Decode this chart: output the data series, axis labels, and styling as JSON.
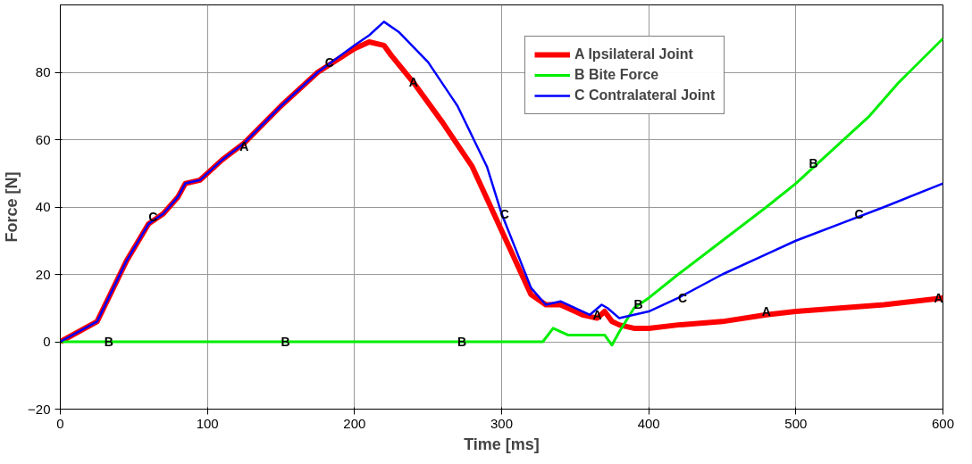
{
  "chart_data": {
    "type": "line",
    "xlabel": "Time [ms]",
    "ylabel": "Force [N]",
    "xlim": [
      0,
      600
    ],
    "ylim": [
      -20,
      100
    ],
    "xticks": [
      0,
      100,
      200,
      300,
      400,
      500,
      600
    ],
    "yticks": [
      -20,
      0,
      20,
      40,
      60,
      80
    ],
    "grid": true,
    "legend": "top right",
    "line_style": "solid",
    "marker": "none",
    "series": [
      {
        "name": "A Ipsilateral Joint",
        "color": "#ff0000",
        "x": [
          0,
          25,
          35,
          45,
          60,
          70,
          80,
          85,
          95,
          110,
          125,
          150,
          175,
          200,
          210,
          220,
          225,
          240,
          260,
          280,
          300,
          320,
          330,
          340,
          355,
          365,
          370,
          375,
          380,
          390,
          400,
          420,
          450,
          480,
          500,
          530,
          560,
          600
        ],
        "values": [
          0,
          6,
          15,
          24,
          35,
          38,
          43,
          47,
          48,
          54,
          59,
          70,
          80,
          87,
          89,
          88,
          85,
          77,
          65,
          52,
          33,
          14,
          11,
          11,
          8,
          7,
          9,
          6,
          5,
          4,
          4,
          5,
          6,
          8,
          9,
          10,
          11,
          13
        ]
      },
      {
        "name": "B Bite Force",
        "color": "#00ee00",
        "x": [
          0,
          328,
          335,
          345,
          360,
          370,
          375,
          380,
          390,
          400,
          420,
          450,
          480,
          500,
          520,
          550,
          570,
          600
        ],
        "values": [
          0,
          0,
          4,
          2,
          2,
          2,
          -1,
          3,
          10,
          13,
          20,
          30,
          40,
          47,
          55,
          67,
          77,
          90
        ]
      },
      {
        "name": "C Contralateral Joint",
        "color": "#0000ff",
        "x": [
          0,
          25,
          35,
          45,
          60,
          70,
          80,
          85,
          95,
          110,
          125,
          150,
          175,
          200,
          210,
          220,
          230,
          250,
          270,
          290,
          300,
          320,
          330,
          340,
          360,
          368,
          372,
          380,
          400,
          420,
          450,
          480,
          500,
          530,
          560,
          600
        ],
        "values": [
          0,
          6,
          15,
          24,
          35,
          38,
          43,
          47,
          48,
          54,
          59,
          70,
          80,
          88,
          91,
          95,
          92,
          83,
          70,
          52,
          38,
          16,
          11,
          12,
          8,
          11,
          10,
          7,
          9,
          13,
          20,
          26,
          30,
          35,
          40,
          47
        ]
      }
    ],
    "annotations": [
      {
        "text": "A",
        "x": 125,
        "y": 58
      },
      {
        "text": "A",
        "x": 240,
        "y": 77
      },
      {
        "text": "A",
        "x": 365,
        "y": 8
      },
      {
        "text": "A",
        "x": 480,
        "y": 9
      },
      {
        "text": "A",
        "x": 600,
        "y": 13
      },
      {
        "text": "B",
        "x": 33,
        "y": 0
      },
      {
        "text": "B",
        "x": 153,
        "y": 0
      },
      {
        "text": "B",
        "x": 273,
        "y": 0
      },
      {
        "text": "B",
        "x": 393,
        "y": 11
      },
      {
        "text": "B",
        "x": 512,
        "y": 53
      },
      {
        "text": "C",
        "x": 63,
        "y": 37
      },
      {
        "text": "C",
        "x": 183,
        "y": 83
      },
      {
        "text": "C",
        "x": 302,
        "y": 38
      },
      {
        "text": "C",
        "x": 423,
        "y": 13
      },
      {
        "text": "C",
        "x": 543,
        "y": 38
      }
    ]
  }
}
